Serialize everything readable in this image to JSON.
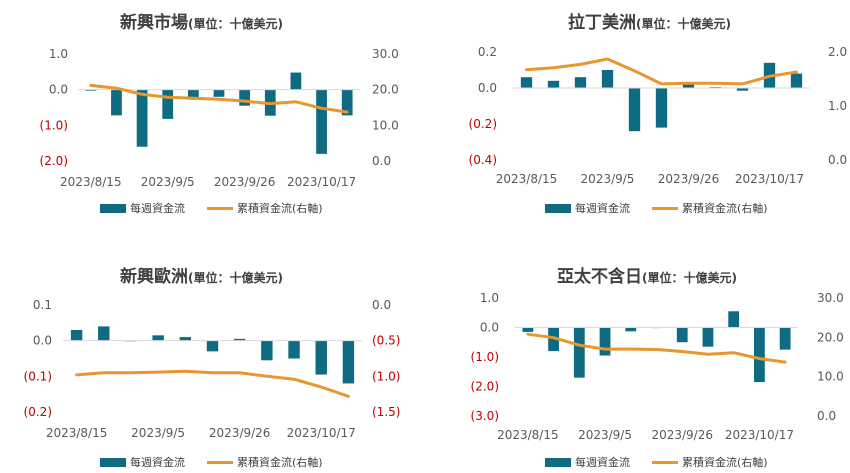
{
  "legend": {
    "bar_label": "每週資金流",
    "line_label": "累積資金流(右軸)"
  },
  "colors": {
    "bar": "#0f6b82",
    "line": "#e8962f",
    "negative_text": "#c00000",
    "axis_text": "#595959"
  },
  "chart_data": [
    {
      "type": "bar+line",
      "title": "新興市場",
      "unit": "(單位：十億美元)",
      "x_tick_labels": [
        "2023/8/15",
        "2023/9/5",
        "2023/9/26",
        "2023/10/17"
      ],
      "y_left": {
        "ylim": [
          -2.0,
          1.0
        ],
        "ticks": [
          1.0,
          0.0,
          -1.0,
          -2.0
        ],
        "tick_labels": [
          "1.0",
          "0.0",
          "(1.0)",
          "(2.0)"
        ]
      },
      "y_right": {
        "ylim": [
          0,
          30
        ],
        "ticks": [
          30,
          20,
          10,
          0
        ],
        "tick_labels": [
          "30.0",
          "20.0",
          "10.0",
          "0.0"
        ]
      },
      "series": [
        {
          "name": "每週資金流",
          "type": "bar",
          "axis": "left",
          "values": [
            -0.03,
            -0.72,
            -1.6,
            -0.82,
            -0.28,
            -0.2,
            -0.45,
            -0.73,
            0.48,
            -1.8,
            -0.72
          ]
        },
        {
          "name": "累積資金流(右軸)",
          "type": "line",
          "axis": "right",
          "values": [
            21.2,
            20.4,
            18.7,
            17.9,
            17.6,
            17.3,
            16.8,
            16.1,
            16.6,
            14.8,
            13.7
          ]
        }
      ]
    },
    {
      "type": "bar+line",
      "title": "拉丁美洲",
      "unit": "(單位：十億美元)",
      "x_tick_labels": [
        "2023/8/15",
        "2023/9/5",
        "2023/9/26",
        "2023/10/17"
      ],
      "y_left": {
        "ylim": [
          -0.4,
          0.2
        ],
        "ticks": [
          0.2,
          0.0,
          -0.2,
          -0.4
        ],
        "tick_labels": [
          "0.2",
          "0.0",
          "(0.2)",
          "(0.4)"
        ]
      },
      "y_right": {
        "ylim": [
          0,
          2.0
        ],
        "ticks": [
          2.0,
          1.0,
          0.0
        ],
        "tick_labels": [
          "2.0",
          "1.0",
          "0.0"
        ]
      },
      "series": [
        {
          "name": "每週資金流",
          "type": "bar",
          "axis": "left",
          "values": [
            0.06,
            0.04,
            0.06,
            0.1,
            -0.24,
            -0.22,
            0.02,
            0.005,
            -0.015,
            0.14,
            0.08
          ]
        },
        {
          "name": "累積資金流(右軸)",
          "type": "line",
          "axis": "right",
          "values": [
            1.67,
            1.71,
            1.77,
            1.87,
            1.65,
            1.41,
            1.42,
            1.42,
            1.41,
            1.55,
            1.63
          ]
        }
      ]
    },
    {
      "type": "bar+line",
      "title": "新興歐洲",
      "unit": "(單位：十億美元)",
      "x_tick_labels": [
        "2023/8/15",
        "2023/9/5",
        "2023/9/26",
        "2023/10/17"
      ],
      "y_left": {
        "ylim": [
          -0.2,
          0.1
        ],
        "ticks": [
          0.1,
          0.0,
          -0.1,
          -0.2
        ],
        "tick_labels": [
          "0.1",
          "0.0",
          "(0.1)",
          "(0.2)"
        ]
      },
      "y_right": {
        "ylim": [
          -1.5,
          0.0
        ],
        "ticks": [
          0.0,
          -0.5,
          -1.0,
          -1.5
        ],
        "tick_labels": [
          "0.0",
          "(0.5)",
          "(1.0)",
          "(1.5)"
        ]
      },
      "series": [
        {
          "name": "每週資金流",
          "type": "bar",
          "axis": "left",
          "values": [
            0.03,
            0.04,
            0.0,
            0.015,
            0.01,
            -0.03,
            0.005,
            -0.055,
            -0.05,
            -0.095,
            -0.12
          ]
        },
        {
          "name": "累積資金流(右軸)",
          "type": "line",
          "axis": "right",
          "values": [
            -0.98,
            -0.95,
            -0.95,
            -0.94,
            -0.93,
            -0.95,
            -0.95,
            -1.0,
            -1.04,
            -1.15,
            -1.28
          ]
        }
      ]
    },
    {
      "type": "bar+line",
      "title": "亞太不含日",
      "unit": "(單位：十億美元)",
      "x_tick_labels": [
        "2023/8/15",
        "2023/9/5",
        "2023/9/26",
        "2023/10/17"
      ],
      "y_left": {
        "ylim": [
          -3.0,
          1.0
        ],
        "ticks": [
          1.0,
          0.0,
          -1.0,
          -2.0,
          -3.0
        ],
        "tick_labels": [
          "1.0",
          "0.0",
          "(1.0)",
          "(2.0)",
          "(3.0)"
        ]
      },
      "y_right": {
        "ylim": [
          0,
          30
        ],
        "ticks": [
          30,
          20,
          10,
          0
        ],
        "tick_labels": [
          "30.0",
          "20.0",
          "10.0",
          "0.0"
        ]
      },
      "series": [
        {
          "name": "每週資金流",
          "type": "bar",
          "axis": "left",
          "values": [
            -0.15,
            -0.8,
            -1.7,
            -0.95,
            -0.13,
            0.0,
            -0.5,
            -0.65,
            0.55,
            -1.85,
            -0.75
          ]
        },
        {
          "name": "累積資金流(右軸)",
          "type": "line",
          "axis": "right",
          "values": [
            20.8,
            19.9,
            18.0,
            17.0,
            17.0,
            16.9,
            16.4,
            15.7,
            16.1,
            14.6,
            13.7
          ]
        }
      ]
    }
  ]
}
